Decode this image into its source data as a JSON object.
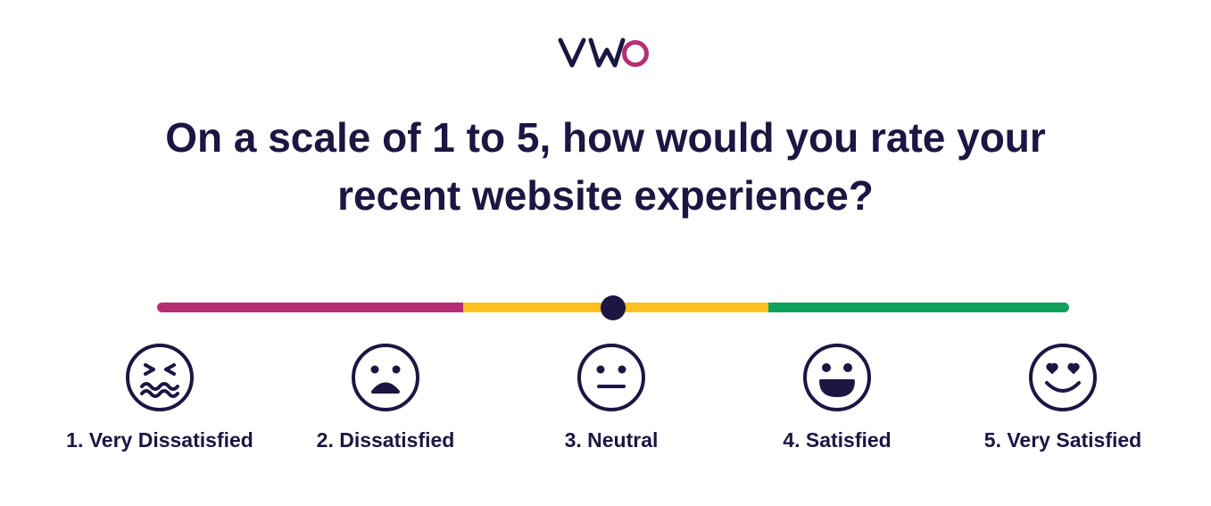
{
  "brand": {
    "logo_text": "VWO",
    "colors": {
      "navy": "#1c1642",
      "magenta": "#b72e75"
    }
  },
  "question": {
    "line1": "On a scale of 1 to 5, how would you rate your",
    "line2": "recent website experience?"
  },
  "slider": {
    "segment_colors": [
      "#b72e75",
      "#fdc021",
      "#12a15a"
    ],
    "current_value": 3,
    "min": 1,
    "max": 5
  },
  "options": [
    {
      "label": "1. Very Dissatisfied",
      "icon": "very-dissatisfied-face-icon"
    },
    {
      "label": "2. Dissatisfied",
      "icon": "dissatisfied-face-icon"
    },
    {
      "label": "3. Neutral",
      "icon": "neutral-face-icon"
    },
    {
      "label": "4. Satisfied",
      "icon": "satisfied-face-icon"
    },
    {
      "label": "5. Very Satisfied",
      "icon": "very-satisfied-face-icon"
    }
  ]
}
